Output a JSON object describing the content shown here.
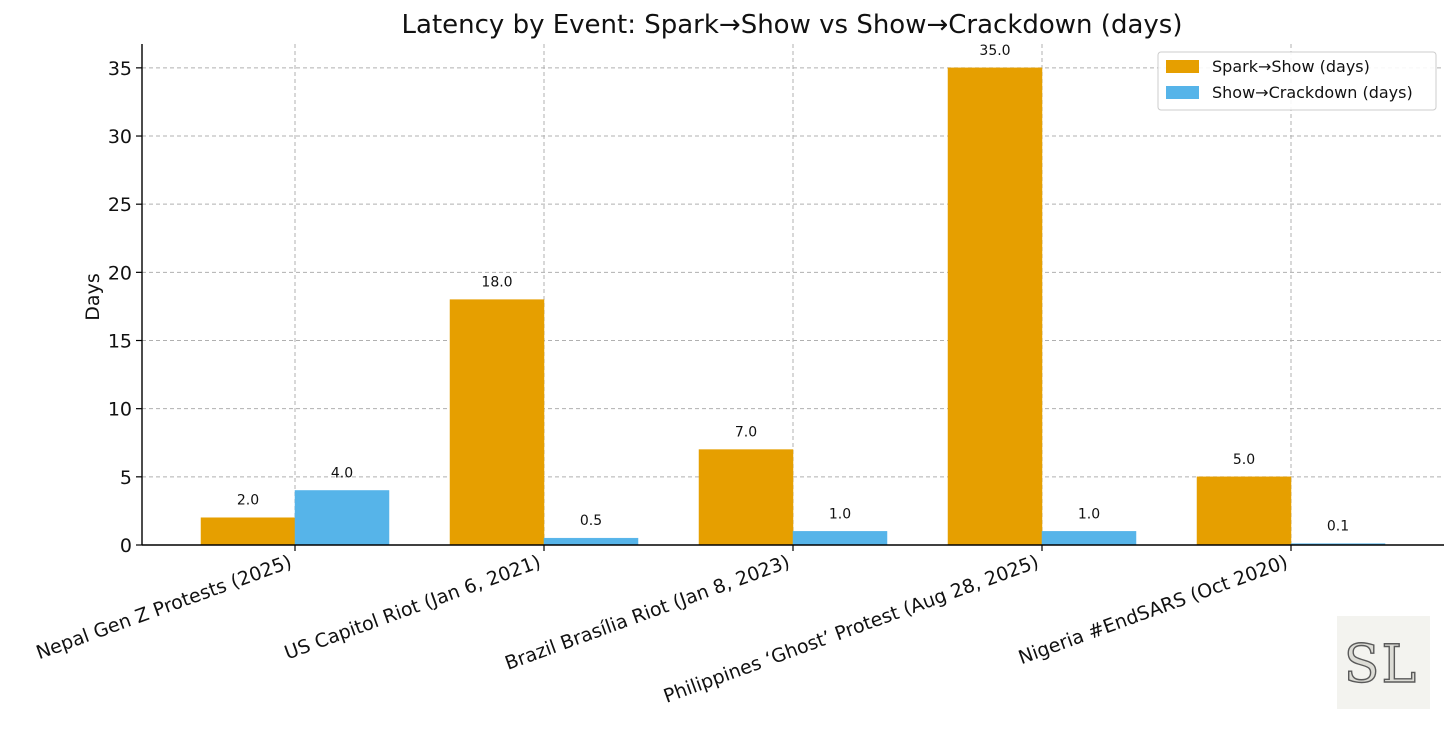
{
  "chart_data": {
    "type": "bar",
    "title": "Latency by Event: Spark→Show vs Show→Crackdown (days)",
    "xlabel": "",
    "ylabel": "Days",
    "ylim": [
      0,
      36.75
    ],
    "yticks": [
      0,
      5,
      10,
      15,
      20,
      25,
      30,
      35
    ],
    "grid": true,
    "legend_position": "top-right",
    "categories": [
      "Nepal Gen Z Protests (2025)",
      "US Capitol Riot (Jan 6, 2021)",
      "Brazil Brasília Riot (Jan 8, 2023)",
      "Philippines ‘Ghost’ Protest (Aug 28, 2025)",
      "Nigeria #EndSARS (Oct 2020)"
    ],
    "series": [
      {
        "name": "Spark→Show (days)",
        "color": "#E69F00",
        "values": [
          2.0,
          18.0,
          7.0,
          35.0,
          5.0
        ],
        "labels": [
          "2.0",
          "18.0",
          "7.0",
          "35.0",
          "5.0"
        ]
      },
      {
        "name": "Show→Crackdown (days)",
        "color": "#56B4E9",
        "values": [
          4.0,
          0.5,
          1.0,
          1.0,
          0.1
        ],
        "labels": [
          "4.0",
          "0.5",
          "1.0",
          "1.0",
          "0.1"
        ]
      }
    ]
  },
  "watermark": {
    "icon": "sl-monogram-logo",
    "text": "SL"
  }
}
